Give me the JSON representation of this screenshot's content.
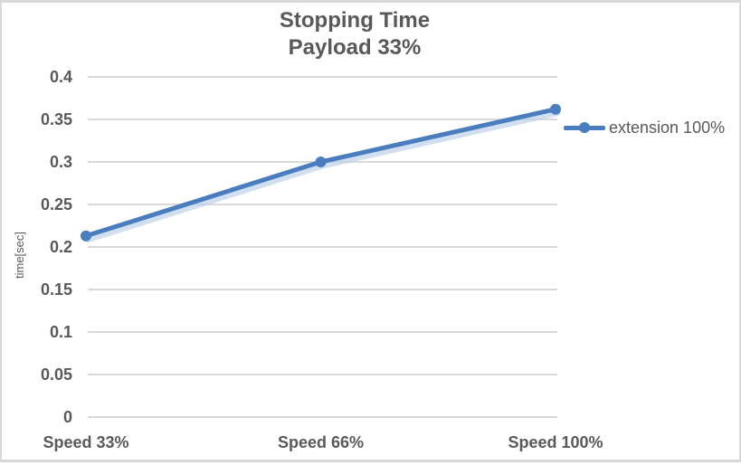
{
  "chart_data": {
    "type": "line",
    "title": "Stopping Time",
    "subtitle": "Payload 33%",
    "ylabel": "time[sec]",
    "xlabel": "",
    "categories": [
      "Speed 33%",
      "Speed 66%",
      "Speed 100%"
    ],
    "series": [
      {
        "name": "extension 100%",
        "values": [
          0.213,
          0.3,
          0.362
        ]
      }
    ],
    "ylim": [
      0,
      0.4
    ],
    "ytick_step": 0.05,
    "ytick_labels": [
      "0",
      "0.05",
      "0.1",
      "0.15",
      "0.2",
      "0.25",
      "0.3",
      "0.35",
      "0.4"
    ],
    "grid": true,
    "legend_position": "right",
    "marker": "circle",
    "colors": {
      "series": "#4a7dbe",
      "series_shadow": "#b9cee9",
      "gridline": "#d9d9d9",
      "text": "#595959",
      "frame_border": "#d9d9d9",
      "background": "#ffffff"
    }
  }
}
